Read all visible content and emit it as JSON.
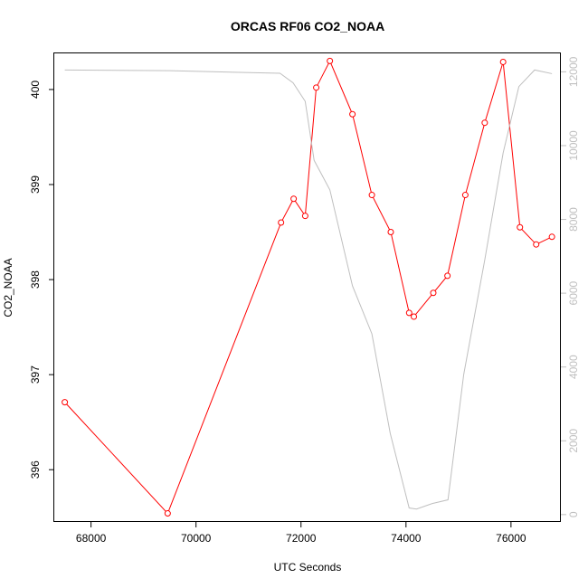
{
  "chart_data": {
    "type": "line",
    "title": "ORCAS RF06 CO2_NOAA",
    "xlabel": "UTC Seconds",
    "ylabel": "CO2_NOAA",
    "xlim": [
      67300,
      76950
    ],
    "ylim": [
      395.45,
      400.38
    ],
    "y2lim": [
      -200,
      12500
    ],
    "x_ticks": [
      68000,
      70000,
      72000,
      74000,
      76000
    ],
    "x_tick_labels": [
      "68000",
      "70000",
      "72000",
      "74000",
      "76000"
    ],
    "y_ticks": [
      396,
      397,
      398,
      399,
      400
    ],
    "y_tick_labels": [
      "396",
      "397",
      "398",
      "399",
      "400"
    ],
    "y2_ticks": [
      0,
      2000,
      4000,
      6000,
      8000,
      10000,
      12000
    ],
    "y2_tick_labels": [
      "0",
      "2000",
      "4000",
      "6000",
      "8000",
      "10000",
      "12000"
    ],
    "grid": false,
    "series": [
      {
        "axis": "left",
        "color": "#ff0000",
        "marker": "open-circle",
        "x": [
          67500,
          69460,
          71620,
          71860,
          72080,
          72290,
          72550,
          72980,
          73350,
          73710,
          74060,
          74150,
          74520,
          74790,
          75130,
          75500,
          75850,
          76170,
          76480,
          76780
        ],
        "y": [
          396.71,
          395.54,
          398.6,
          398.85,
          398.67,
          400.02,
          400.3,
          399.74,
          398.89,
          398.5,
          397.65,
          397.61,
          397.86,
          398.04,
          398.89,
          399.65,
          400.29,
          398.55,
          398.37,
          398.45
        ]
      },
      {
        "axis": "right",
        "color": "#bfbfbf",
        "marker": "none",
        "x": [
          67500,
          69500,
          71600,
          71850,
          72080,
          72250,
          72550,
          72980,
          73350,
          73700,
          74060,
          74200,
          74500,
          74800,
          75100,
          75500,
          75850,
          76150,
          76450,
          76780
        ],
        "y": [
          12050,
          12030,
          11960,
          11700,
          11200,
          9600,
          8800,
          6200,
          4900,
          2200,
          180,
          150,
          300,
          400,
          3800,
          6900,
          9800,
          11600,
          12050,
          11950
        ]
      }
    ]
  }
}
